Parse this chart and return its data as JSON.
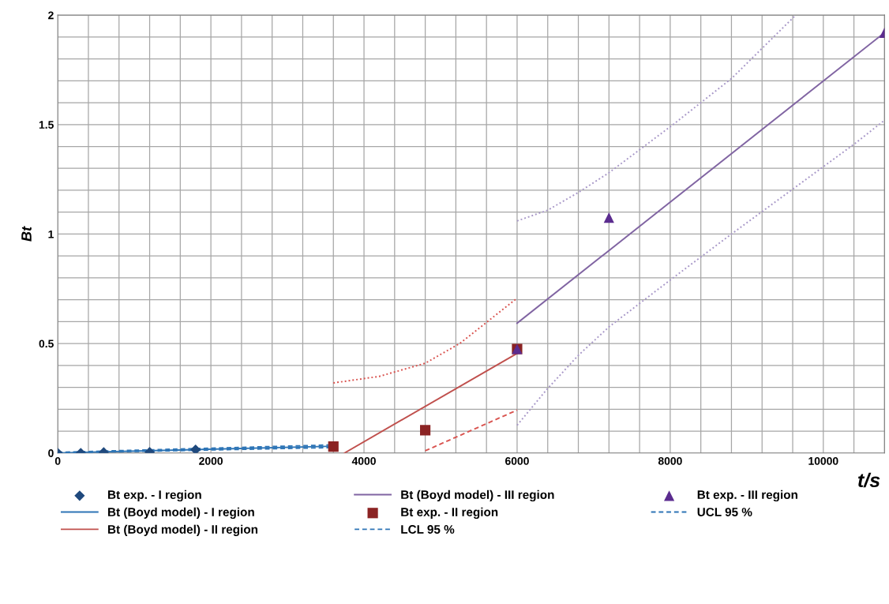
{
  "chart_data": {
    "type": "scatter",
    "xlabel": "t/s",
    "ylabel": "Bt",
    "xlim": [
      0,
      10800
    ],
    "xticks": [
      0,
      2000,
      4000,
      6000,
      8000,
      10000
    ],
    "ylim": [
      0,
      2
    ],
    "yticks": [
      0,
      0.5,
      1,
      1.5,
      2
    ],
    "grid": true,
    "legend": "bottom",
    "series": [
      {
        "name": "Bt exp. - I region",
        "marker": "diamond",
        "color": "#1f497d",
        "x": [
          0,
          300,
          600,
          1200,
          1800
        ],
        "values": [
          0,
          0,
          0.003,
          0.004,
          0.015
        ]
      },
      {
        "name": "Bt (Boyd model) - I region",
        "type": "line",
        "line_style": "solid",
        "color": "#2e75b6",
        "x": [
          0,
          3600
        ],
        "values": [
          0,
          0.031
        ]
      },
      {
        "name": "Bt (Boyd model) - II region",
        "type": "line",
        "line_style": "solid",
        "color": "#c0504d",
        "x": [
          3745,
          6000
        ],
        "values": [
          0,
          0.455
        ]
      },
      {
        "name": "Bt (Boyd model) - III region",
        "type": "line",
        "line_style": "solid",
        "color": "#8064a2",
        "x": [
          6000,
          10800
        ],
        "values": [
          0.593,
          1.92
        ]
      },
      {
        "name": "Bt exp. - II region",
        "marker": "square",
        "color": "#8b2323",
        "x": [
          3600,
          4800,
          6000
        ],
        "values": [
          0.029,
          0.104,
          0.475
        ]
      },
      {
        "name": "LCL 95 %",
        "type": "line",
        "line_style": "dashed",
        "color": "#2e75b6",
        "x": [
          0,
          3600
        ],
        "values": [
          0,
          0.025
        ]
      },
      {
        "name": "Bt exp. - III region",
        "marker": "triangle",
        "color": "#5b2c8f",
        "x": [
          6000,
          7200,
          10800
        ],
        "values": [
          0.475,
          1.075,
          1.92
        ]
      },
      {
        "name": "UCL 95 %",
        "type": "line",
        "line_style": "dashed",
        "color": "#2e75b6",
        "x": [
          0,
          3600
        ],
        "values": [
          0.003,
          0.037
        ]
      },
      {
        "type": "line",
        "line_style": "dotted",
        "color": "#d9534f",
        "x": [
          3600,
          4200,
          4800,
          5250,
          6000
        ],
        "values": [
          0.32,
          0.35,
          0.41,
          0.5,
          0.707
        ]
      },
      {
        "type": "line",
        "line_style": "dashed",
        "color": "#d9534f",
        "x": [
          4800,
          6000
        ],
        "values": [
          0.01,
          0.196
        ]
      },
      {
        "type": "line",
        "line_style": "dotted",
        "color": "#a898c8",
        "x": [
          6000,
          6400,
          6800,
          7200,
          8000,
          8800,
          9640
        ],
        "values": [
          1.06,
          1.109,
          1.19,
          1.28,
          1.49,
          1.71,
          2.0
        ]
      },
      {
        "type": "line",
        "line_style": "dotted",
        "color": "#a898c8",
        "x": [
          6000,
          6400,
          6800,
          7200,
          8000,
          8800,
          9600,
          10400,
          10800
        ],
        "values": [
          0.127,
          0.295,
          0.446,
          0.576,
          0.79,
          1.0,
          1.205,
          1.41,
          1.52
        ]
      }
    ]
  }
}
